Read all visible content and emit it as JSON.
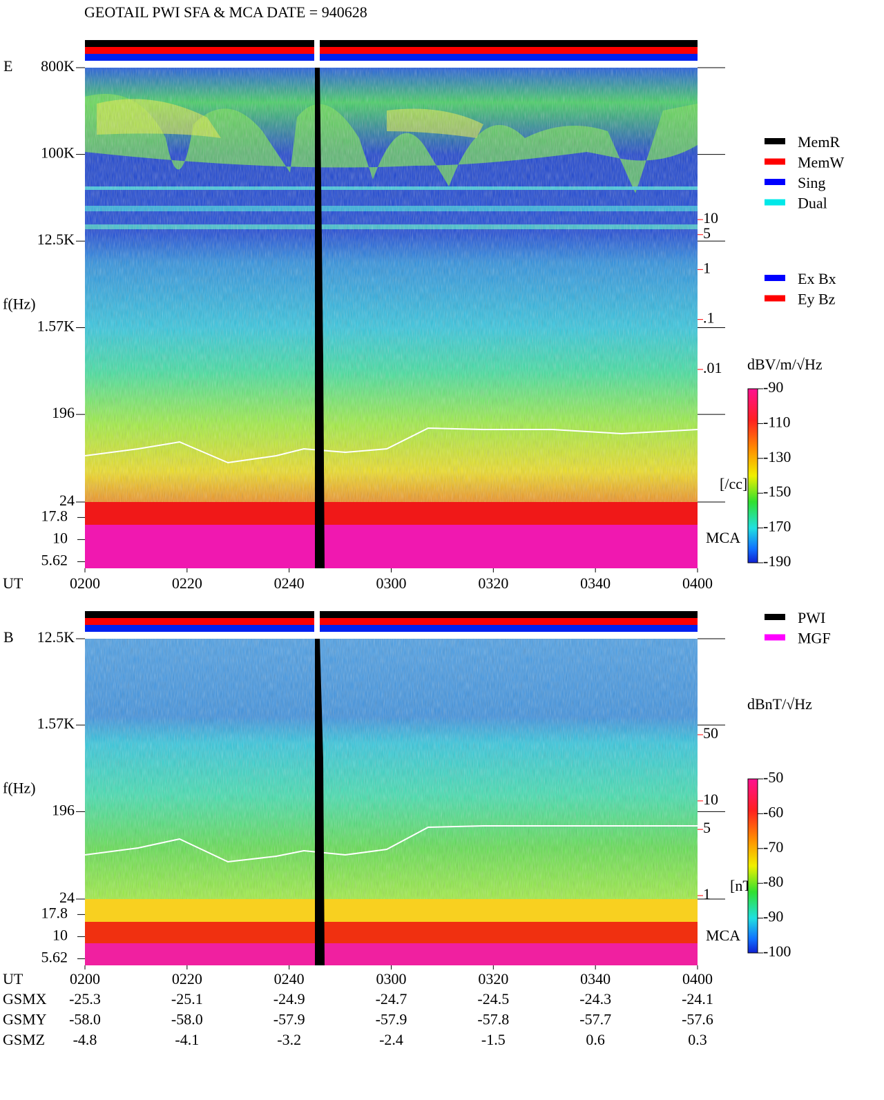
{
  "title": "GEOTAIL  PWI SFA & MCA   DATE = 940628",
  "chart_data": [
    {
      "type": "spectrogram",
      "panel": "E",
      "y_label": "f(Hz)",
      "x_label": "UT",
      "categories": [
        "0200",
        "0220",
        "0240",
        "0300",
        "0320",
        "0340",
        "0400"
      ],
      "log_y": true,
      "ylim": [
        24,
        800000
      ],
      "yticks": [
        {
          "value": 800000,
          "label": "800K"
        },
        {
          "value": 100000,
          "label": "100K"
        },
        {
          "value": 12500,
          "label": "12.5K"
        },
        {
          "value": 1570,
          "label": "1.57K"
        },
        196,
        24
      ],
      "mca_channels": [
        "17.8",
        "10",
        "5.62"
      ],
      "mca_label": "MCA",
      "y2lim": [
        0.01,
        10
      ],
      "y2ticks": [
        10,
        5,
        1,
        {
          "value": 0.1,
          "label": ".1"
        },
        {
          "value": 0.01,
          "label": ".01"
        }
      ],
      "y2_label": "[/cc]",
      "y2_color": "#ff0000",
      "colorbar": {
        "label": "dBV/m/√Hz",
        "clim": [
          -190,
          -90
        ],
        "ticks": [
          -90,
          -110,
          -130,
          -150,
          -170,
          -190
        ]
      },
      "legend": [
        {
          "name": "MemR",
          "color": "#000000"
        },
        {
          "name": "MemW",
          "color": "#ff0000"
        },
        {
          "name": "Sing",
          "color": "#0000ff"
        },
        {
          "name": "Dual",
          "color": "#00e8e8"
        }
      ],
      "legend2": [
        {
          "name": "Ex Bx",
          "color": "#0000ff"
        },
        {
          "name": "Ey Bz",
          "color": "#ff0000"
        }
      ]
    },
    {
      "type": "spectrogram",
      "panel": "B",
      "y_label": "f(Hz)",
      "x_label": "UT",
      "categories": [
        "0200",
        "0220",
        "0240",
        "0300",
        "0320",
        "0340",
        "0400"
      ],
      "log_y": true,
      "ylim": [
        24,
        12500
      ],
      "yticks": [
        {
          "value": 12500,
          "label": "12.5K"
        },
        {
          "value": 1570,
          "label": "1.57K"
        },
        196,
        24
      ],
      "mca_channels": [
        "17.8",
        "10",
        "5.62"
      ],
      "mca_label": "MCA",
      "y2lim": [
        1,
        50
      ],
      "y2ticks": [
        50,
        10,
        5,
        1
      ],
      "y2_label": "[nT]",
      "y2_color": "#ff0000",
      "colorbar": {
        "label": "dBnT/√Hz",
        "clim": [
          -100,
          -50
        ],
        "ticks": [
          -50,
          -60,
          -70,
          -80,
          -90,
          -100
        ]
      },
      "legend": [
        {
          "name": "PWI",
          "color": "#000000"
        },
        {
          "name": "MGF",
          "color": "#ff00ff"
        }
      ]
    }
  ],
  "orbit": {
    "rows": [
      {
        "label": "GSMX",
        "values": [
          "-25.3",
          "-25.1",
          "-24.9",
          "-24.7",
          "-24.5",
          "-24.3",
          "-24.1"
        ]
      },
      {
        "label": "GSMY",
        "values": [
          "-58.0",
          "-58.0",
          "-57.9",
          "-57.9",
          "-57.8",
          "-57.7",
          "-57.6"
        ]
      },
      {
        "label": "GSMZ",
        "values": [
          "-4.8",
          "-4.1",
          "-3.2",
          "-2.4",
          "-1.5",
          "0.6",
          "0.3"
        ]
      }
    ]
  }
}
